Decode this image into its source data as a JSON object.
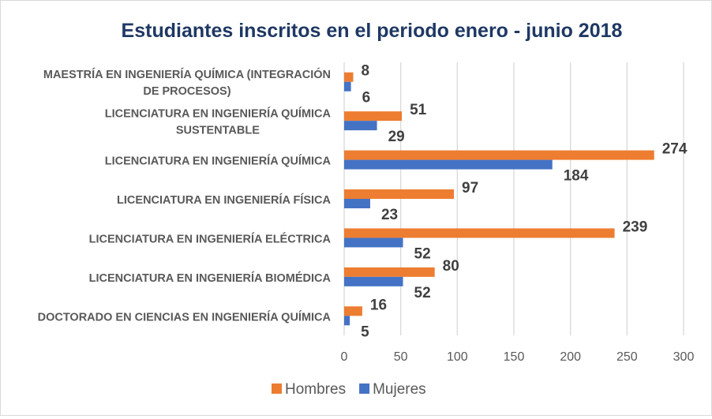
{
  "chart_data": {
    "type": "bar",
    "orientation": "horizontal",
    "title": "Estudiantes inscritos en el periodo enero - junio 2018",
    "categories": [
      [
        "MAESTRÍA EN INGENIERÍA QUÍMICA (INTEGRACIÓN",
        "DE PROCESOS)"
      ],
      [
        "LICENCIATURA EN INGENIERÍA QUÍMICA",
        "SUSTENTABLE"
      ],
      [
        "LICENCIATURA EN INGENIERÍA QUÍMICA"
      ],
      [
        "LICENCIATURA EN INGENIERÍA FÍSICA"
      ],
      [
        "LICENCIATURA EN INGENIERÍA ELÉCTRICA"
      ],
      [
        "LICENCIATURA EN INGENIERÍA BIOMÉDICA"
      ],
      [
        "DOCTORADO EN CIENCIAS EN INGENIERÍA QUÍMICA"
      ]
    ],
    "series": [
      {
        "name": "Hombres",
        "color": "#ed7d31",
        "values": [
          8,
          51,
          274,
          97,
          239,
          80,
          16
        ]
      },
      {
        "name": "Mujeres",
        "color": "#4472c4",
        "values": [
          6,
          29,
          184,
          23,
          52,
          52,
          5
        ]
      }
    ],
    "xlim": [
      0,
      300
    ],
    "xticks": [
      "0",
      "50",
      "100",
      "150",
      "200",
      "250",
      "300"
    ],
    "grid": true,
    "legend": "bottom",
    "data_labels": true
  }
}
